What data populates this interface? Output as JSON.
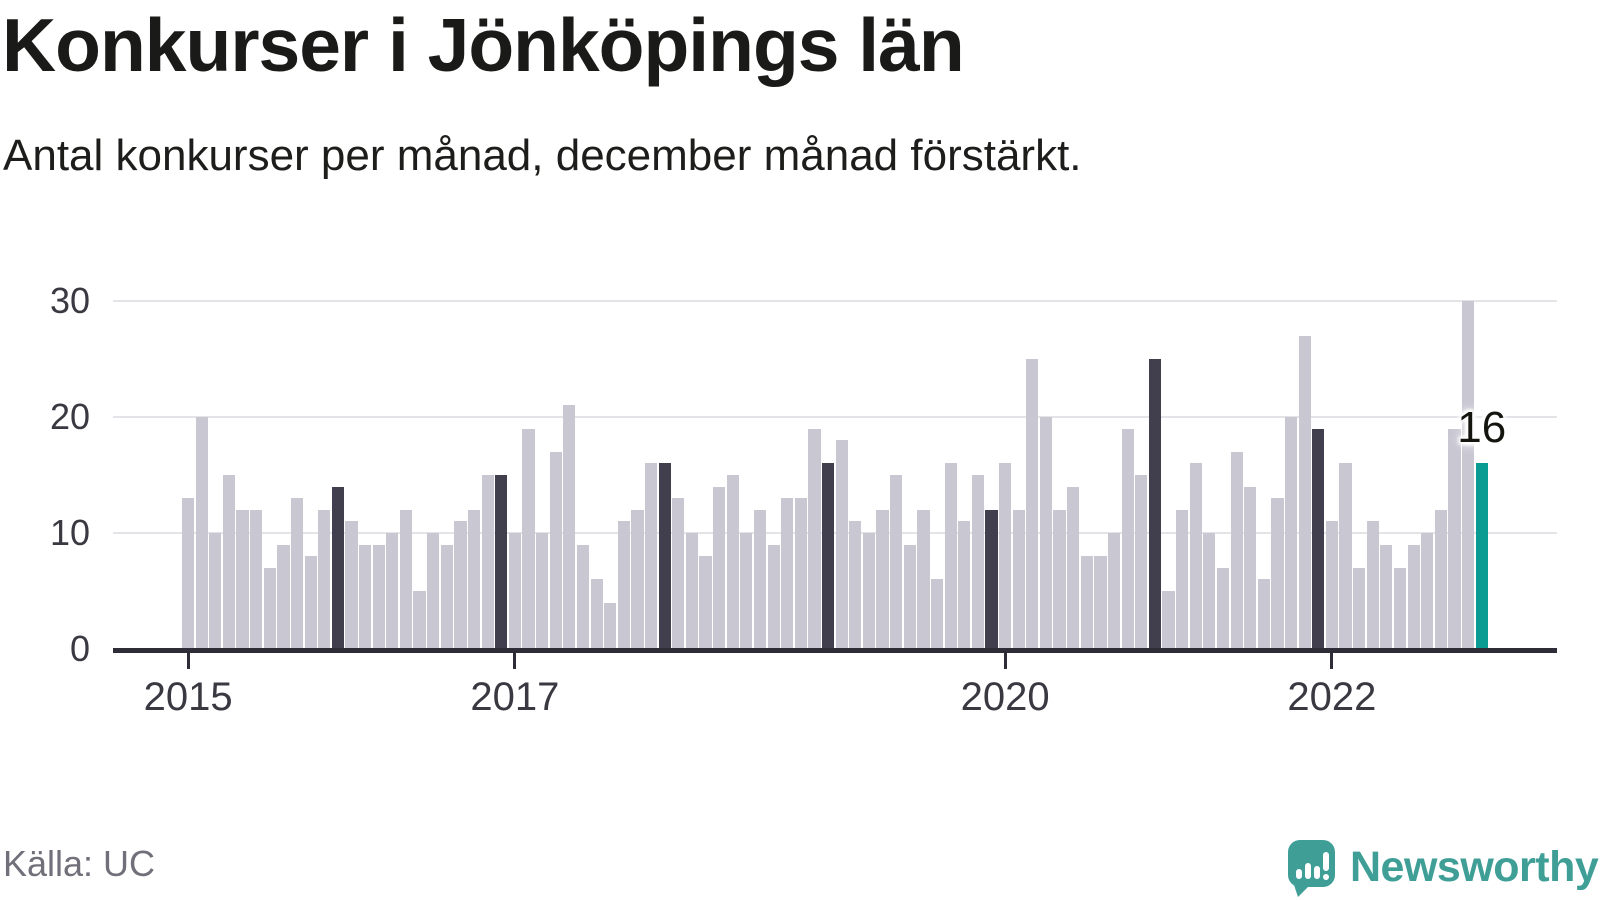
{
  "title": "Konkurser i Jönköpings län",
  "subtitle": "Antal konkurser per månad, december månad förstärkt.",
  "source": "Källa: UC",
  "brand": "Newsworthy",
  "annotation": "16",
  "colors": {
    "bar": "#c9c7d2",
    "december_bar": "#413f4e",
    "latest_bar": "#0a9c92",
    "axis": "#2e2d37",
    "gridline": "#e4e3e8",
    "tick_label": "#3a3942",
    "source_text": "#716f7a",
    "brand_teal": "#3f9f97",
    "title_text": "#1a1a18"
  },
  "chart_data": {
    "type": "bar",
    "title": "Konkurser i Jönköpings län",
    "subtitle": "Antal konkurser per månad, december månad förstärkt.",
    "xlabel": "",
    "ylabel": "",
    "x_start": "2015-01",
    "x_end": "2022-12",
    "frequency": "monthly",
    "ylim": [
      0,
      30
    ],
    "y_ticks": [
      0,
      10,
      20,
      30
    ],
    "x_ticks": [
      {
        "label": "2015",
        "month_index": 0
      },
      {
        "label": "2017",
        "month_index": 24
      },
      {
        "label": "2020",
        "month_index": 60
      },
      {
        "label": "2022",
        "month_index": 84
      }
    ],
    "grid": "horizontal",
    "legend": "none",
    "highlight": {
      "december_months": "dark bars",
      "latest_month": "teal bar",
      "latest_month_name": "december 2022",
      "latest_value": 16
    },
    "series": [
      {
        "name": "Antal konkurser",
        "values_by_year": {
          "2015": [
            13,
            20,
            10,
            15,
            12,
            12,
            7,
            9,
            13,
            8,
            12,
            14
          ],
          "2016": [
            11,
            9,
            9,
            10,
            12,
            5,
            10,
            9,
            11,
            12,
            15,
            15
          ],
          "2017": [
            10,
            19,
            10,
            17,
            21,
            9,
            6,
            4,
            11,
            12,
            16,
            16
          ],
          "2018": [
            13,
            10,
            8,
            14,
            15,
            10,
            12,
            9,
            13,
            13,
            19,
            16
          ],
          "2019": [
            18,
            11,
            10,
            12,
            15,
            9,
            12,
            6,
            16,
            11,
            15,
            12
          ],
          "2020": [
            16,
            12,
            25,
            20,
            12,
            14,
            8,
            8,
            10,
            19,
            15,
            25
          ],
          "2021": [
            5,
            12,
            16,
            10,
            7,
            17,
            14,
            6,
            13,
            20,
            27,
            19
          ],
          "2022": [
            11,
            16,
            7,
            11,
            9,
            7,
            9,
            10,
            12,
            19,
            30,
            16
          ]
        }
      }
    ]
  }
}
